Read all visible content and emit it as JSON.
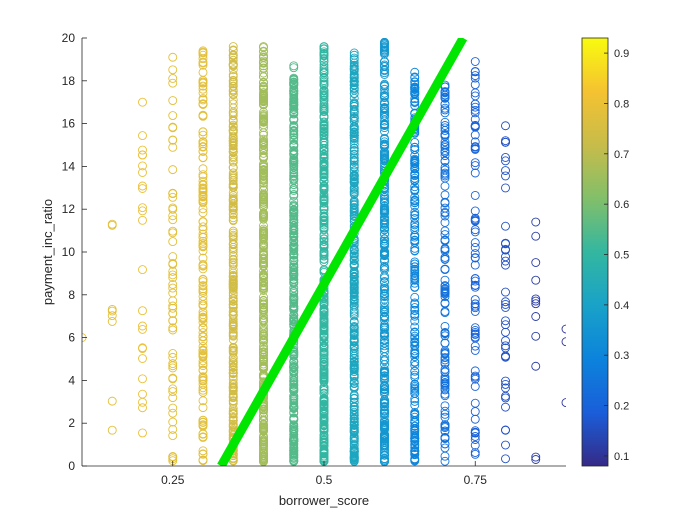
{
  "chart_data": {
    "type": "scatter",
    "title": "",
    "xlabel": "borrower_score",
    "ylabel": "payment_inc_ratio",
    "xlim": [
      0.1,
      0.9
    ],
    "ylim": [
      0,
      20
    ],
    "x_ticks": [
      0.25,
      0.5,
      0.75
    ],
    "x_tick_labels": [
      "0.25",
      "0.5",
      "0.75"
    ],
    "y_ticks": [
      0,
      2,
      4,
      6,
      8,
      10,
      12,
      14,
      16,
      18,
      20
    ],
    "y_tick_labels": [
      "0",
      "2",
      "4",
      "6",
      "8",
      "10",
      "12",
      "14",
      "16",
      "18",
      "20"
    ],
    "grid": false,
    "marker": "open-circle",
    "colormap": "parula",
    "colorbar": {
      "range": [
        0.08,
        0.93
      ],
      "ticks": [
        0.1,
        0.2,
        0.3,
        0.4,
        0.5,
        0.6,
        0.7,
        0.8,
        0.9
      ],
      "tick_labels": [
        "0.1",
        "0.2",
        "0.3",
        "0.4",
        "0.5",
        "0.6",
        "0.7",
        "0.8",
        "0.9"
      ]
    },
    "score_columns": [
      {
        "x": 0.1,
        "color_value": 0.78,
        "y_max": 6.0,
        "count": 1
      },
      {
        "x": 0.15,
        "color_value": 0.78,
        "y_max": 11.3,
        "count": 8
      },
      {
        "x": 0.2,
        "color_value": 0.8,
        "y_max": 17.0,
        "count": 24
      },
      {
        "x": 0.25,
        "color_value": 0.78,
        "y_max": 19.1,
        "count": 60
      },
      {
        "x": 0.3,
        "color_value": 0.78,
        "y_max": 19.4,
        "count": 150
      },
      {
        "x": 0.35,
        "color_value": 0.74,
        "y_max": 19.6,
        "count": 260
      },
      {
        "x": 0.4,
        "color_value": 0.66,
        "y_max": 19.6,
        "count": 340
      },
      {
        "x": 0.45,
        "color_value": 0.55,
        "y_max": 18.7,
        "count": 360
      },
      {
        "x": 0.5,
        "color_value": 0.5,
        "y_max": 19.6,
        "count": 380
      },
      {
        "x": 0.55,
        "color_value": 0.42,
        "y_max": 19.3,
        "count": 330
      },
      {
        "x": 0.6,
        "color_value": 0.36,
        "y_max": 19.8,
        "count": 280
      },
      {
        "x": 0.65,
        "color_value": 0.3,
        "y_max": 18.4,
        "count": 200
      },
      {
        "x": 0.7,
        "color_value": 0.24,
        "y_max": 17.8,
        "count": 130
      },
      {
        "x": 0.75,
        "color_value": 0.2,
        "y_max": 18.9,
        "count": 80
      },
      {
        "x": 0.8,
        "color_value": 0.16,
        "y_max": 15.9,
        "count": 40
      },
      {
        "x": 0.85,
        "color_value": 0.12,
        "y_max": 11.4,
        "count": 12
      },
      {
        "x": 0.9,
        "color_value": 0.1,
        "y_max": 6.4,
        "count": 3
      }
    ],
    "fit_line": {
      "color": "#00e600",
      "x": [
        0.33,
        0.73
      ],
      "y": [
        0,
        20
      ]
    }
  }
}
